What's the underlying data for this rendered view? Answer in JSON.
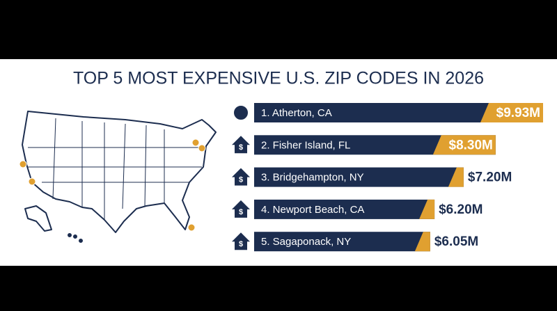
{
  "chart_data": {
    "type": "bar",
    "orientation": "horizontal",
    "title": "TOP 5 MOST EXPENSIVE U.S. ZIP CODES IN 2026",
    "categories": [
      "1. Atherton, CA",
      "2. Fisher Island, FL",
      "3. Bridgehampton, NY",
      "4. Newport Beach, CA",
      "5. Sagaponack, NY"
    ],
    "values": [
      9.93,
      8.3,
      7.2,
      6.2,
      6.05
    ],
    "value_labels": [
      "$9.93M",
      "$8.30M",
      "$7.20M",
      "$6.20M",
      "$6.05M"
    ],
    "color": "#1c2d4f",
    "accent_color": "#e0a030"
  }
}
